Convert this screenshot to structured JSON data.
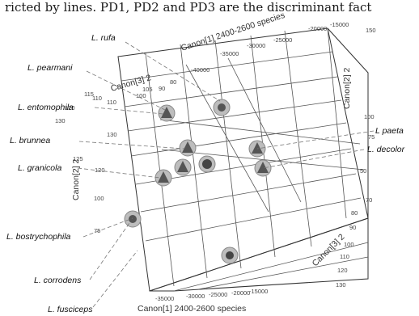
{
  "caption_fragment": "ricted by lines. PD1, PD2 and PD3 are the discriminant fact",
  "chart_data": {
    "type": "scatter",
    "projection": "3d",
    "axes": {
      "canon1_top": {
        "label": "Canon[1] 2400-2600 species",
        "ticks": [
          "-15000",
          "-20000",
          "-25000",
          "-30000",
          "-35000",
          "-40000"
        ]
      },
      "canon1_bottom": {
        "label": "Canon[1] 2400-2600 species",
        "ticks": [
          "-35000",
          "-30000",
          "-25000",
          "-20000",
          "-15000"
        ]
      },
      "canon2_left": {
        "label": "Canon[2] 2",
        "ticks": [
          "130",
          "125",
          "120",
          "115",
          "110",
          "105",
          "100",
          "75"
        ]
      },
      "canon2_right": {
        "label": "Canon[2] 2",
        "ticks": [
          "150",
          "100",
          "75",
          "50",
          "70"
        ]
      },
      "canon3_top": {
        "label": "Canon[3] 2",
        "ticks": [
          "130",
          "120",
          "110",
          "100",
          "90",
          "80"
        ]
      },
      "canon3_bottom": {
        "label": "Canon[3] 2",
        "ticks": [
          "80",
          "90",
          "100",
          "110",
          "120",
          "130"
        ]
      }
    },
    "series": [
      {
        "name": "L. rufa"
      },
      {
        "name": "L. pearmani"
      },
      {
        "name": "L. entomophila"
      },
      {
        "name": "L. brunnea"
      },
      {
        "name": "L. granicola"
      },
      {
        "name": "L. bostrychophila"
      },
      {
        "name": "L. corrodens"
      },
      {
        "name": "L. fusciceps"
      },
      {
        "name": "L paeta"
      },
      {
        "name": "L. decolor"
      }
    ]
  }
}
